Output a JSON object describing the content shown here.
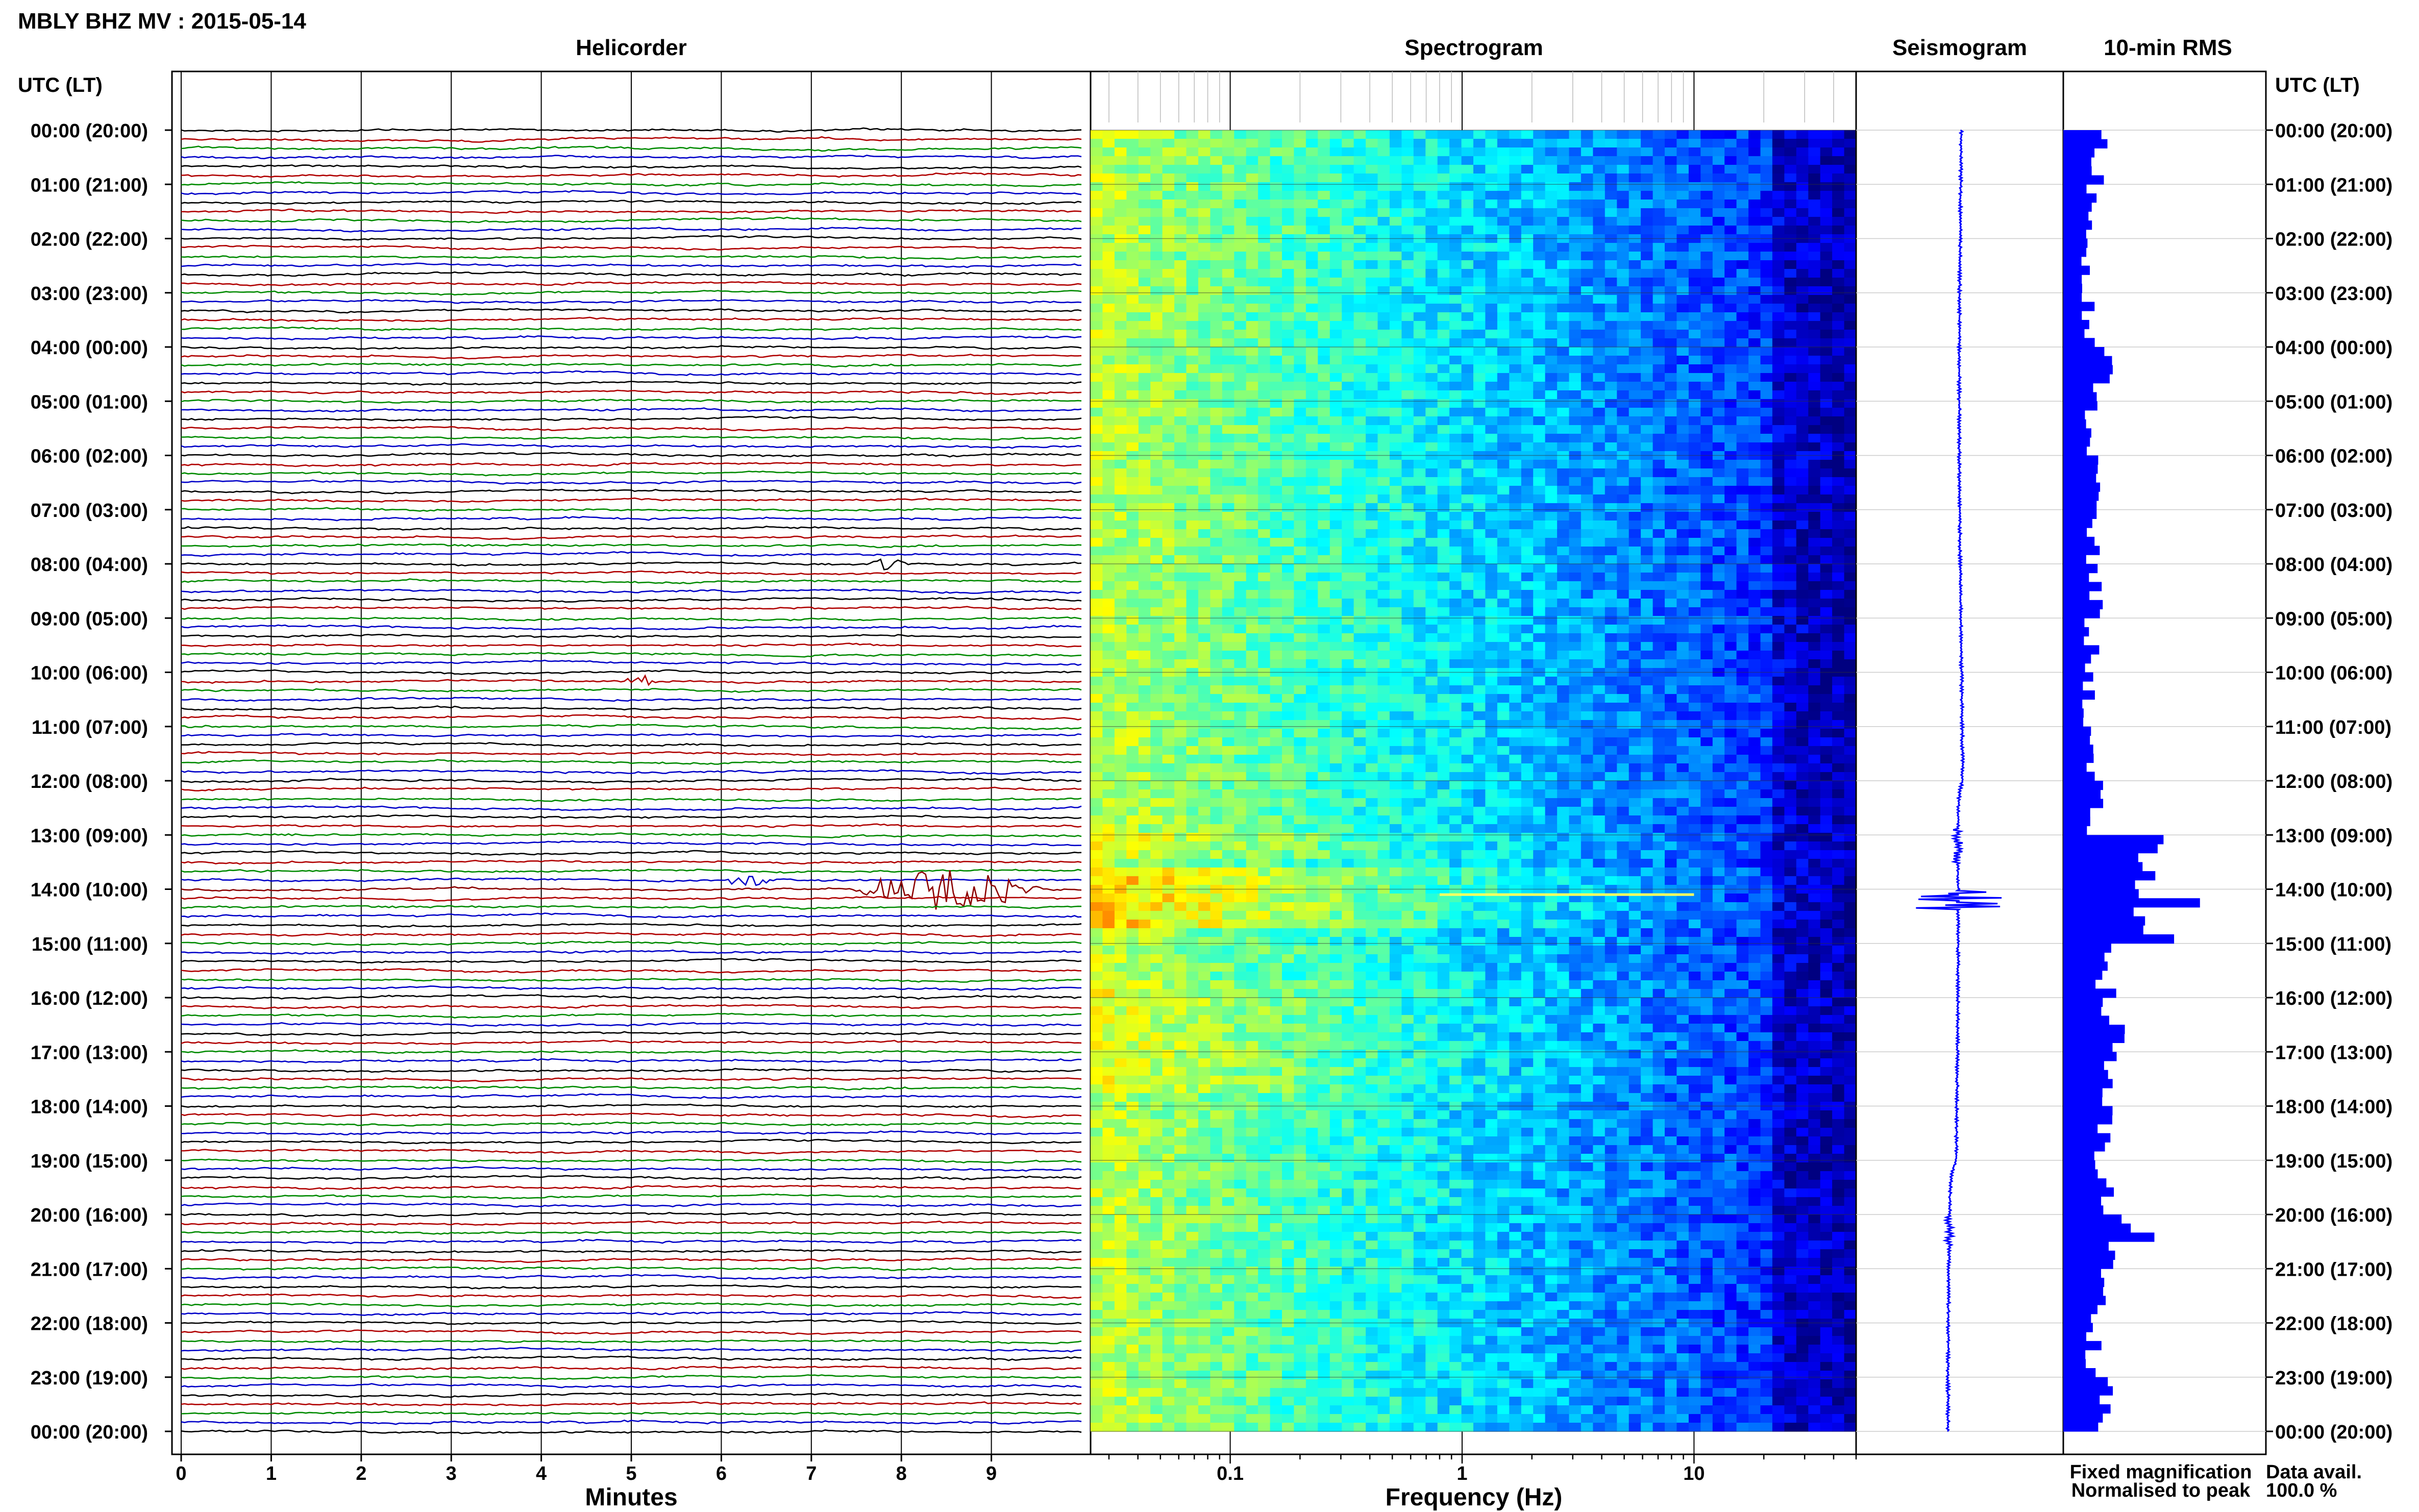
{
  "title": "MBLY BHZ MV : 2015-05-14",
  "panels": {
    "helicorder": "Helicorder",
    "spectrogram": "Spectrogram",
    "seismogram": "Seismogram",
    "rms": "10-min RMS"
  },
  "time_axis_label": "UTC (LT)",
  "time_ticks": [
    "00:00 (20:00)",
    "01:00 (21:00)",
    "02:00 (22:00)",
    "03:00 (23:00)",
    "04:00 (00:00)",
    "05:00 (01:00)",
    "06:00 (02:00)",
    "07:00 (03:00)",
    "08:00 (04:00)",
    "09:00 (05:00)",
    "10:00 (06:00)",
    "11:00 (07:00)",
    "12:00 (08:00)",
    "13:00 (09:00)",
    "14:00 (10:00)",
    "15:00 (11:00)",
    "16:00 (12:00)",
    "17:00 (13:00)",
    "18:00 (14:00)",
    "19:00 (15:00)",
    "20:00 (16:00)",
    "21:00 (17:00)",
    "22:00 (18:00)",
    "23:00 (19:00)",
    "00:00 (20:00)"
  ],
  "helicorder_xlabel": "Minutes",
  "helicorder_xticks": [
    "0",
    "1",
    "2",
    "3",
    "4",
    "5",
    "6",
    "7",
    "8",
    "9"
  ],
  "spectrogram_xlabel": "Frequency (Hz)",
  "spectrogram_xticks": [
    "0.1",
    "1",
    "10"
  ],
  "legend": {
    "fixed": "Fixed magnification",
    "normalised": "Normalised to peak",
    "fixed_color": "#0000ff",
    "normalised_color": "#ff0000"
  },
  "data_avail": {
    "label": "Data avail.",
    "value": "100.0 %"
  },
  "trace_colors": [
    "#000000",
    "#b00000",
    "#008a00",
    "#0000c8"
  ],
  "chart_data": {
    "type": "heatmap",
    "station": "MBLY BHZ MV",
    "date": "2015-05-14",
    "helicorder": {
      "lines_per_hour": 6,
      "minutes_per_line": 10,
      "x_range": [
        0,
        10
      ],
      "events": [
        {
          "utc": "08:00",
          "line": 0,
          "start_min": 7.6,
          "end_min": 8.1,
          "amp": 0.35
        },
        {
          "utc": "10:00",
          "line": 1,
          "start_min": 4.9,
          "end_min": 5.3,
          "amp": 0.3
        },
        {
          "utc": "14:00",
          "line": 0,
          "start_min": 7.4,
          "end_min": 9.6,
          "amp": 1.0
        },
        {
          "utc": "13:00",
          "line": 5,
          "start_min": 6.0,
          "end_min": 6.6,
          "amp": 0.3
        }
      ]
    },
    "spectrogram": {
      "x_scale": "log",
      "x_range_hz": [
        0.025,
        50
      ],
      "tremor_line": {
        "utc_hour": 14.1,
        "f_min": 0.8,
        "f_max": 10
      }
    },
    "rms_10min_hourly_peaks": [
      0.25,
      0.2,
      0.18,
      0.18,
      0.28,
      0.2,
      0.22,
      0.2,
      0.22,
      0.2,
      0.18,
      0.18,
      0.22,
      0.55,
      0.7,
      0.3,
      0.35,
      0.3,
      0.28,
      0.3,
      0.38,
      0.25,
      0.22,
      0.3,
      0.3
    ],
    "rms_events": [
      {
        "utc_hour": 13.0,
        "value": 0.55
      },
      {
        "utc_hour": 14.2,
        "value": 0.75
      },
      {
        "utc_hour": 20.05,
        "value": 0.32
      },
      {
        "utc_hour": 20.4,
        "value": 0.5
      }
    ]
  }
}
